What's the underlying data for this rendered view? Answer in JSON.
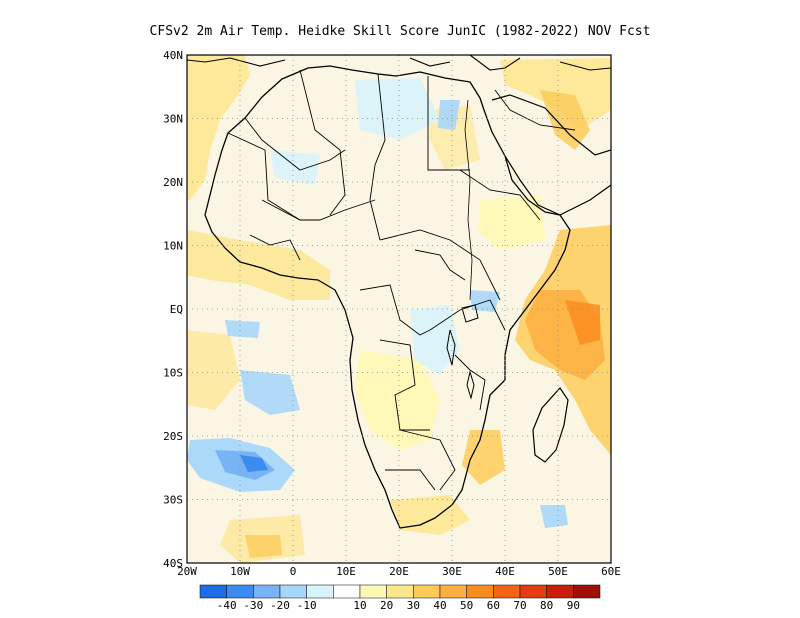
{
  "title": "CFSv2  2m Air Temp. Heidke Skill Score JunIC (1982-2022) NOV Fcst",
  "map": {
    "lat_labels": [
      "40N",
      "30N",
      "20N",
      "10N",
      "EQ",
      "10S",
      "20S",
      "30S",
      "40S"
    ],
    "lon_labels": [
      "20W",
      "10W",
      "0",
      "10E",
      "20E",
      "30E",
      "40E",
      "50E",
      "60E"
    ],
    "lat_range": [
      -40,
      40
    ],
    "lon_range": [
      -20,
      60
    ],
    "grid": "dotted"
  },
  "colorbar": {
    "colors": [
      "#1e6be6",
      "#3c8cf0",
      "#78b4f5",
      "#a8d6fa",
      "#d7f3fb",
      "#ffffff",
      "#fff8b4",
      "#fde68c",
      "#fbcc5a",
      "#fbb040",
      "#f98c1e",
      "#f56414",
      "#e63c12",
      "#c81e0a",
      "#a01008"
    ],
    "labels": [
      "-40",
      "-30",
      "-20",
      "-10",
      "10",
      "20",
      "30",
      "40",
      "50",
      "60",
      "70",
      "80",
      "90"
    ]
  }
}
